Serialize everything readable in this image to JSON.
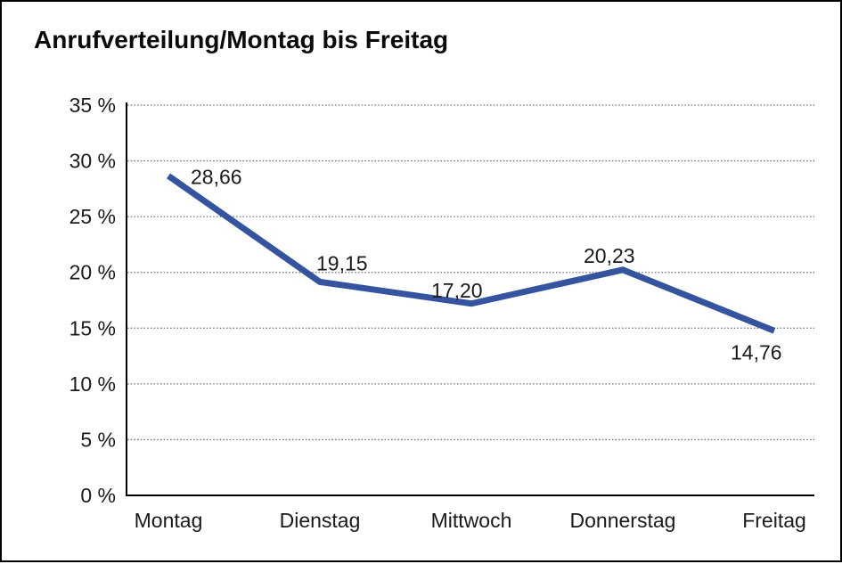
{
  "chart_data": {
    "type": "line",
    "title": "Anrufverteilung/Montag bis Freitag",
    "categories": [
      "Montag",
      "Dienstag",
      "Mittwoch",
      "Donnerstag",
      "Freitag"
    ],
    "values": [
      28.66,
      19.15,
      17.2,
      20.23,
      14.76
    ],
    "value_labels": [
      "28,66",
      "19,15",
      "17,20",
      "20,23",
      "14,76"
    ],
    "xlabel": "",
    "ylabel": "",
    "ylim": [
      0,
      35
    ],
    "ytick_step": 5,
    "ytick_labels": [
      "0 %",
      "5 %",
      "10 %",
      "15 %",
      "20 %",
      "25 %",
      "30 %",
      "35 %"
    ],
    "grid": "horizontal-dotted",
    "legend": "none"
  },
  "colors": {
    "line": "#3554A0",
    "gridline": "#6e6e6e",
    "axis": "#000000",
    "text": "#1a1a1a",
    "title": "#0a0a0a",
    "background": "#ffffff",
    "frame_border": "#000000"
  }
}
